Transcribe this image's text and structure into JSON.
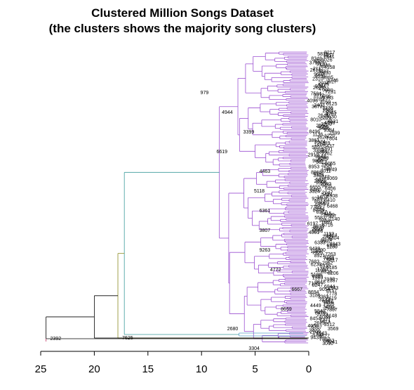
{
  "chart_data": {
    "type": "dendrogram",
    "title_lines": [
      "Clustered Million Songs Dataset",
      "(the clusters shows the majority song clusters)"
    ],
    "xlabel": "",
    "ylabel": "",
    "x_axis_reversed": true,
    "xlim": [
      0,
      25
    ],
    "xticks": [
      "25",
      "20",
      "15",
      "10",
      "5",
      "0"
    ],
    "tick_values": [
      25,
      20,
      15,
      10,
      5,
      0
    ],
    "grid": false,
    "legend": "none",
    "branch_colors": {
      "root": "#000000",
      "main_cluster": "#9b4fd1",
      "minor_cluster_a": "#5aa0c8",
      "minor_cluster_b": "#3a9a9a",
      "minor_cluster_c": "#8a8a20",
      "singleton": "#c03060"
    },
    "merge_heights": {
      "root": 24.5,
      "second": 20.0,
      "third": 17.8,
      "fourth": 17.2,
      "main_cluster_top": 16.0
    },
    "leaf_labels": [
      {
        "text": "2392",
        "height": 24.5
      },
      {
        "text": "7625",
        "height": 17.8
      },
      {
        "text": "979",
        "height": 10.5
      },
      {
        "text": "4944",
        "height": 8.5
      },
      {
        "text": "3399",
        "height": 6.5
      },
      {
        "text": "6619",
        "height": 9.0
      },
      {
        "text": "4463",
        "height": 5.0
      },
      {
        "text": "5118",
        "height": 5.5
      },
      {
        "text": "6361",
        "height": 5.0
      },
      {
        "text": "3807",
        "height": 5.0
      },
      {
        "text": "9263",
        "height": 5.0
      },
      {
        "text": "4772",
        "height": 4.0
      },
      {
        "text": "6667",
        "height": 2.0
      },
      {
        "text": "8659",
        "height": 3.0
      },
      {
        "text": "2680",
        "height": 8.0
      },
      {
        "text": "3304",
        "height": 6.0
      }
    ]
  }
}
